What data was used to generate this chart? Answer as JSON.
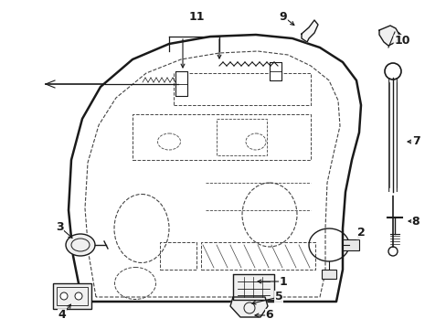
{
  "background_color": "#ffffff",
  "line_color": "#1a1a1a",
  "dashed_color": "#444444",
  "fig_width": 4.89,
  "fig_height": 3.6,
  "dpi": 100
}
